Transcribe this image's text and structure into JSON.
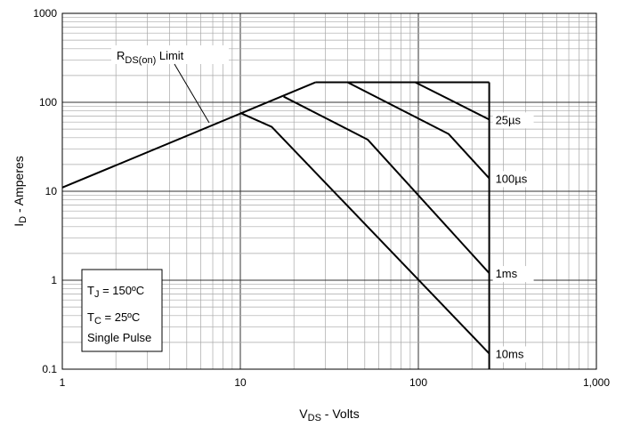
{
  "chart_data": {
    "type": "line",
    "x_scale": "log",
    "y_scale": "log",
    "xlim": [
      1,
      1000
    ],
    "ylim": [
      0.1,
      1000
    ],
    "x_ticks": [
      "1",
      "10",
      "100",
      "1,000"
    ],
    "y_ticks": [
      "0.1",
      "1",
      "10",
      "100",
      "1000"
    ],
    "xlabel": {
      "main": "V",
      "sub": "DS",
      "rest": " - Volts"
    },
    "ylabel": {
      "main": "I",
      "sub": "D",
      "rest": " - Amperes"
    },
    "grid": true,
    "series": [
      {
        "x": [
          1,
          26.5
        ],
        "y": [
          11,
          168
        ]
      },
      {
        "x": [
          26.5,
          250
        ],
        "y": [
          168,
          168
        ]
      },
      {
        "x": [
          250,
          250
        ],
        "y": [
          168,
          0.1
        ]
      },
      {
        "x": [
          96,
          250
        ],
        "y": [
          168,
          64
        ]
      },
      {
        "x": [
          40,
          148,
          250
        ],
        "y": [
          168,
          44,
          14
        ]
      },
      {
        "x": [
          17.5,
          52,
          250
        ],
        "y": [
          116,
          38,
          1.2
        ]
      },
      {
        "x": [
          10,
          15,
          250
        ],
        "y": [
          76,
          53,
          0.15
        ]
      }
    ],
    "annotations": {
      "rds_limit": {
        "main": "R",
        "sub": "DS(on)",
        "rest": " Limit"
      },
      "curve_labels": [
        {
          "text": "25µs",
          "x": 250,
          "y": 64
        },
        {
          "text": "100µs",
          "x": 250,
          "y": 14
        },
        {
          "text": "1ms",
          "x": 250,
          "y": 1.2
        },
        {
          "text": "10ms",
          "x": 250,
          "y": 0.15
        }
      ],
      "conditions": {
        "tj": {
          "main": "T",
          "sub": "J",
          "rest": " = 150ºC"
        },
        "tc": {
          "main": "T",
          "sub": "C",
          "rest": " = 25ºC"
        },
        "pulse": "Single Pulse"
      }
    }
  }
}
